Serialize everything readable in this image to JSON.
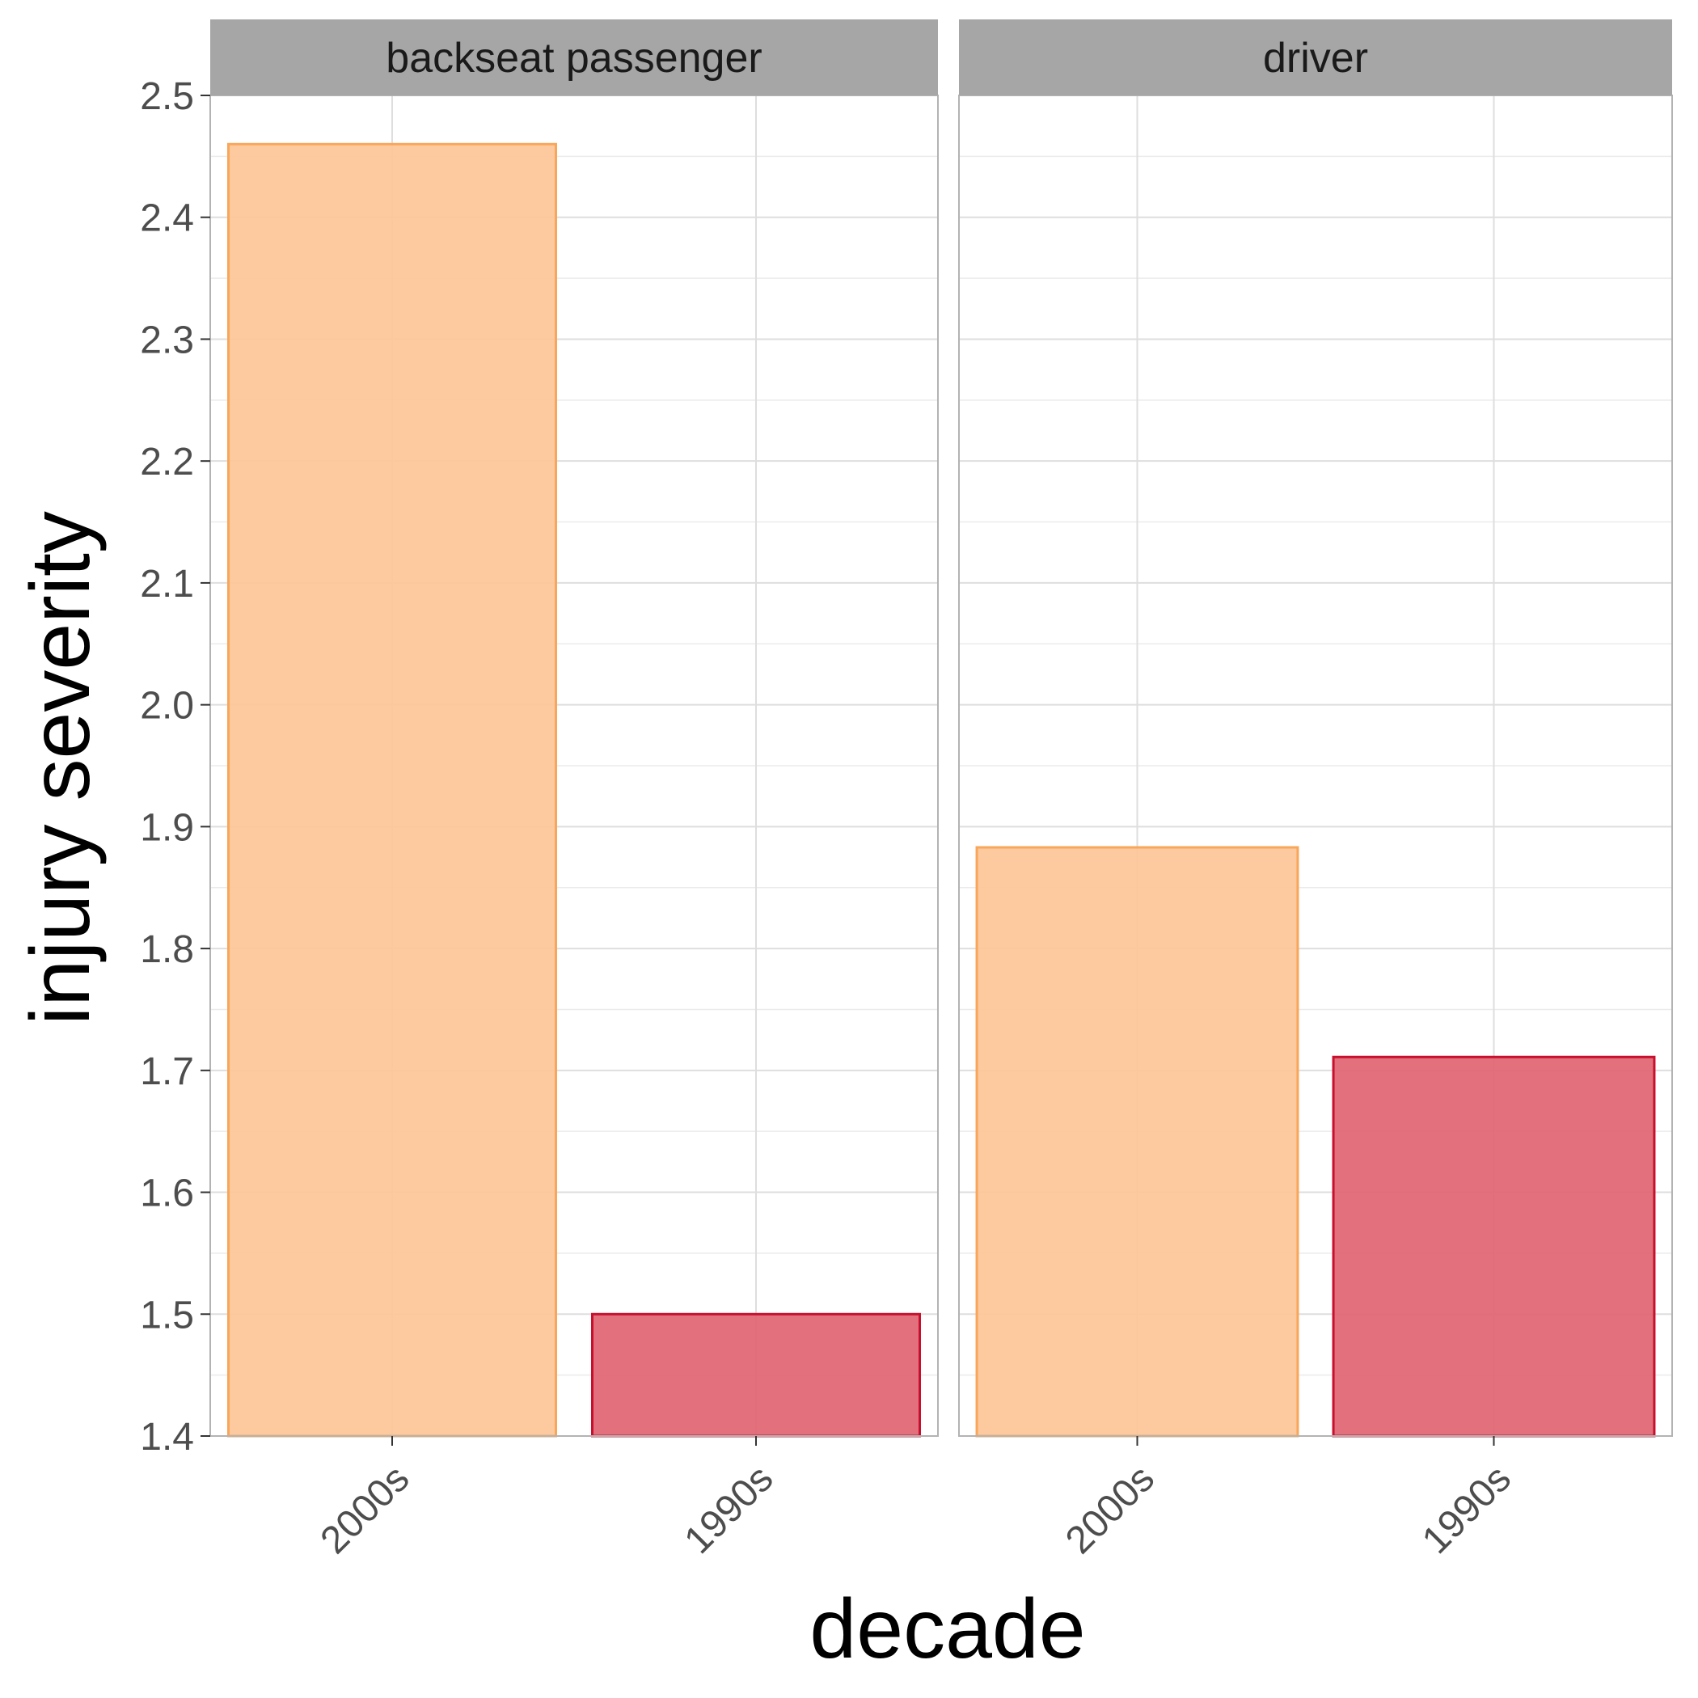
{
  "chart_data": {
    "type": "bar",
    "xlabel": "decade",
    "ylabel": "injury severity",
    "ylim": [
      1.4,
      2.5
    ],
    "y_ticks": [
      "1.4",
      "1.5",
      "1.6",
      "1.7",
      "1.8",
      "1.9",
      "2.0",
      "2.1",
      "2.2",
      "2.3",
      "2.4",
      "2.5"
    ],
    "y_minor_step": 0.05,
    "grid": true,
    "legend": "none",
    "categories": [
      "2000s",
      "1990s"
    ],
    "colors": {
      "2000s": {
        "fill": "#FDC697",
        "stroke": "#F9A65A"
      },
      "1990s": {
        "fill": "#E06572",
        "stroke": "#C8102E"
      }
    },
    "panels": [
      {
        "label": "backseat passenger",
        "bars": [
          {
            "category": "2000s",
            "value": 2.46
          },
          {
            "category": "1990s",
            "value": 1.5
          }
        ]
      },
      {
        "label": "driver",
        "bars": [
          {
            "category": "2000s",
            "value": 1.883
          },
          {
            "category": "1990s",
            "value": 1.711
          }
        ]
      }
    ]
  }
}
